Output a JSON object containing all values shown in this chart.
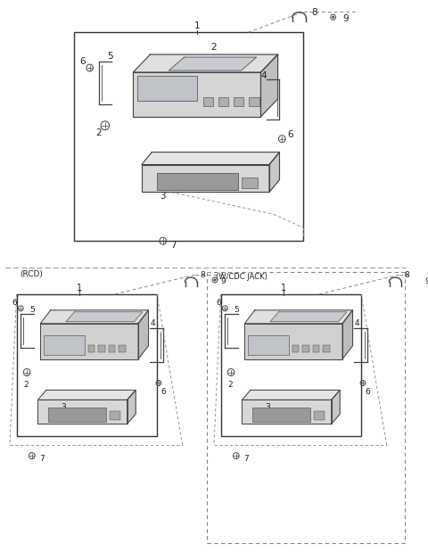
{
  "bg_color": "#ffffff",
  "line_color": "#444444",
  "dash_color": "#888888",
  "text_color": "#222222",
  "section_rcd_label": "(RCD)",
  "section_wcdc_label": "(W/CDC JACK)",
  "figsize": [
    4.8,
    6.19
  ],
  "dpi": 100
}
